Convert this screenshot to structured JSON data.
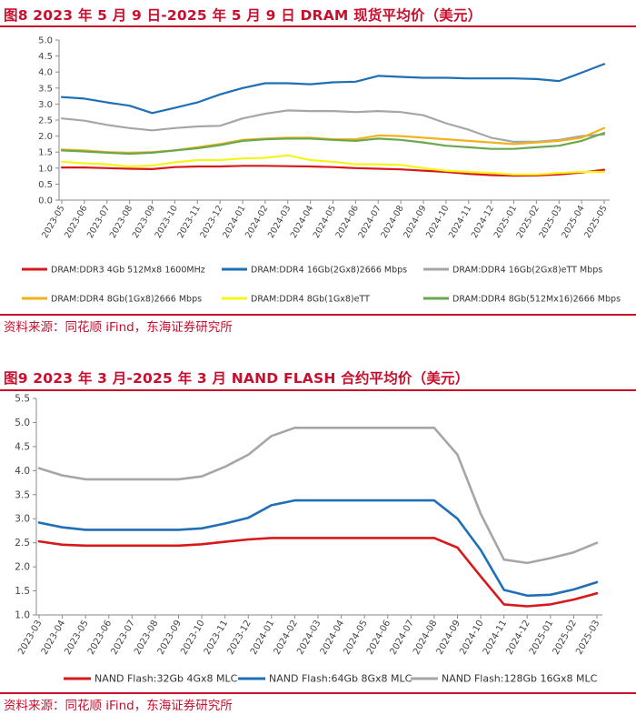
{
  "figure1": {
    "title": "图8  2023 年 5 月 9 日-2025 年 5 月 9 日 DRAM 现货平均价（美元）",
    "source": "资料来源：同花顺 iFind，东海证券研究所"
  },
  "figure2": {
    "title": "图9  2023 年 3 月-2025 年 3 月 NAND FLASH 合约平均价（美元）",
    "source": "资料来源：同花顺 iFind，东海证券研究所"
  },
  "chart_data": [
    {
      "type": "line",
      "title": "2023 年 5 月 9 日-2025 年 5 月 9 日 DRAM 现货平均价（美元）",
      "xlabel": "",
      "ylabel": "",
      "ylim": [
        0,
        5
      ],
      "yticks": [
        "0.0",
        "0.5",
        "1.0",
        "1.5",
        "2.0",
        "2.5",
        "3.0",
        "3.5",
        "4.0",
        "4.5",
        "5.0"
      ],
      "categories": [
        "2023-05",
        "2023-06",
        "2023-07",
        "2023-08",
        "2023-09",
        "2023-10",
        "2023-11",
        "2023-12",
        "2024-01",
        "2024-02",
        "2024-03",
        "2024-04",
        "2024-05",
        "2024-06",
        "2024-07",
        "2024-08",
        "2024-09",
        "2024-10",
        "2024-11",
        "2024-12",
        "2025-01",
        "2025-02",
        "2025-03",
        "2025-04",
        "2025-05"
      ],
      "legend_position": "bottom",
      "series": [
        {
          "name": "DRAM:DDR3 4Gb 512Mx8 1600MHz",
          "color": "#d7191c",
          "values": [
            1.02,
            1.02,
            1.0,
            0.98,
            0.97,
            1.03,
            1.05,
            1.05,
            1.07,
            1.07,
            1.06,
            1.05,
            1.03,
            1.0,
            0.98,
            0.96,
            0.92,
            0.88,
            0.82,
            0.78,
            0.76,
            0.77,
            0.8,
            0.86,
            0.95
          ]
        },
        {
          "name": "DRAM:DDR4 16Gb(2Gx8)2666 Mbps",
          "color": "#1f6fb5",
          "values": [
            3.22,
            3.17,
            3.05,
            2.95,
            2.72,
            2.88,
            3.05,
            3.3,
            3.5,
            3.65,
            3.65,
            3.62,
            3.68,
            3.7,
            3.88,
            3.85,
            3.82,
            3.82,
            3.8,
            3.8,
            3.8,
            3.78,
            3.72,
            3.98,
            4.25
          ]
        },
        {
          "name": "DRAM:DDR4 16Gb(2Gx8)eTT Mbps",
          "color": "#a6a6a6",
          "values": [
            2.55,
            2.48,
            2.35,
            2.25,
            2.18,
            2.25,
            2.3,
            2.32,
            2.55,
            2.7,
            2.8,
            2.78,
            2.78,
            2.75,
            2.78,
            2.75,
            2.65,
            2.4,
            2.2,
            1.95,
            1.82,
            1.82,
            1.88,
            2.0,
            2.05
          ]
        },
        {
          "name": "DRAM:DDR4 8Gb(1Gx8)2666 Mbps",
          "color": "#f2b21b",
          "values": [
            1.58,
            1.55,
            1.5,
            1.48,
            1.5,
            1.55,
            1.65,
            1.75,
            1.88,
            1.92,
            1.95,
            1.95,
            1.9,
            1.9,
            2.02,
            2.0,
            1.95,
            1.9,
            1.85,
            1.8,
            1.75,
            1.8,
            1.85,
            1.95,
            2.25
          ]
        },
        {
          "name": "DRAM:DDR4 8Gb(1Gx8)eTT",
          "color": "#f5f51b",
          "values": [
            1.2,
            1.15,
            1.12,
            1.05,
            1.08,
            1.18,
            1.25,
            1.25,
            1.3,
            1.32,
            1.4,
            1.25,
            1.2,
            1.12,
            1.12,
            1.1,
            1.0,
            0.92,
            0.88,
            0.85,
            0.8,
            0.8,
            0.85,
            0.88,
            0.88
          ]
        },
        {
          "name": "DRAM:DDR4 8Gb(512Mx16)2666 Mbps",
          "color": "#6aa84f",
          "values": [
            1.55,
            1.52,
            1.48,
            1.45,
            1.48,
            1.55,
            1.62,
            1.72,
            1.85,
            1.9,
            1.92,
            1.92,
            1.88,
            1.85,
            1.92,
            1.88,
            1.8,
            1.7,
            1.65,
            1.6,
            1.6,
            1.65,
            1.7,
            1.85,
            2.1
          ]
        }
      ]
    },
    {
      "type": "line",
      "title": "2023 年 3 月-2025 年 3 月 NAND FLASH 合约平均价（美元）",
      "xlabel": "",
      "ylabel": "",
      "ylim": [
        1.0,
        5.5
      ],
      "yticks": [
        "1.0",
        "1.5",
        "2.0",
        "2.5",
        "3.0",
        "3.5",
        "4.0",
        "4.5",
        "5.0",
        "5.5"
      ],
      "categories": [
        "2023-03",
        "2023-04",
        "2023-05",
        "2023-06",
        "2023-07",
        "2023-08",
        "2023-09",
        "2023-10",
        "2023-11",
        "2023-12",
        "2024-01",
        "2024-02",
        "2024-03",
        "2024-04",
        "2024-05",
        "2024-06",
        "2024-07",
        "2024-08",
        "2024-09",
        "2024-10",
        "2024-11",
        "2024-12",
        "2025-01",
        "2025-02",
        "2025-03"
      ],
      "legend_position": "bottom",
      "series": [
        {
          "name": "NAND Flash:32Gb 4Gx8 MLC",
          "color": "#d7191c",
          "values": [
            2.53,
            2.46,
            2.44,
            2.44,
            2.44,
            2.44,
            2.44,
            2.47,
            2.52,
            2.57,
            2.6,
            2.6,
            2.6,
            2.6,
            2.6,
            2.6,
            2.6,
            2.6,
            2.4,
            1.8,
            1.22,
            1.18,
            1.22,
            1.32,
            1.45
          ]
        },
        {
          "name": "NAND Flash:64Gb 8Gx8 MLC",
          "color": "#1f6fb5",
          "values": [
            2.92,
            2.82,
            2.77,
            2.77,
            2.77,
            2.77,
            2.77,
            2.8,
            2.9,
            3.02,
            3.28,
            3.38,
            3.38,
            3.38,
            3.38,
            3.38,
            3.38,
            3.38,
            3.0,
            2.35,
            1.52,
            1.4,
            1.42,
            1.53,
            1.68
          ]
        },
        {
          "name": "NAND Flash:128Gb 16Gx8 MLC",
          "color": "#a6a6a6",
          "values": [
            4.05,
            3.9,
            3.82,
            3.82,
            3.82,
            3.82,
            3.82,
            3.88,
            4.08,
            4.33,
            4.72,
            4.89,
            4.89,
            4.89,
            4.89,
            4.89,
            4.89,
            4.89,
            4.33,
            3.1,
            2.15,
            2.08,
            2.18,
            2.3,
            2.5
          ]
        }
      ]
    }
  ]
}
